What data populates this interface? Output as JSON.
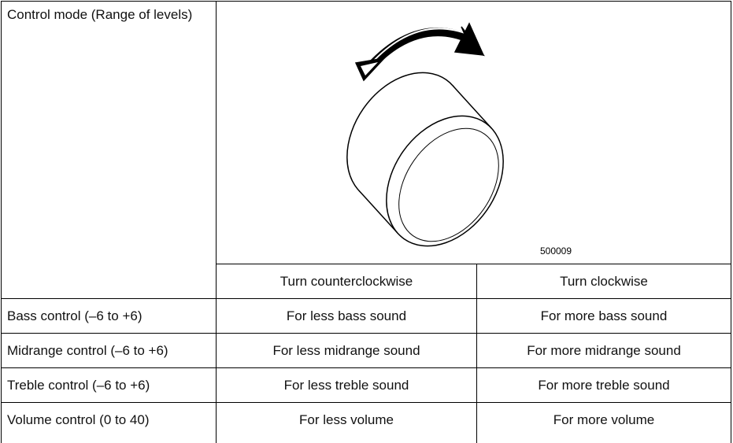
{
  "header": {
    "label": "Control mode (Range of levels)",
    "figure_code": "500009"
  },
  "columns": [
    "Turn counterclockwise",
    "Turn clockwise"
  ],
  "rows": [
    [
      "Bass control (–6 to +6)",
      "For less bass sound",
      "For more bass sound"
    ],
    [
      "Midrange control (–6 to +6)",
      "For less midrange sound",
      "For more midrange sound"
    ],
    [
      "Treble control (–6 to +6)",
      "For less treble sound",
      "For more treble sound"
    ],
    [
      "Volume control (0 to 40)",
      "For less volume",
      "For more volume"
    ]
  ]
}
